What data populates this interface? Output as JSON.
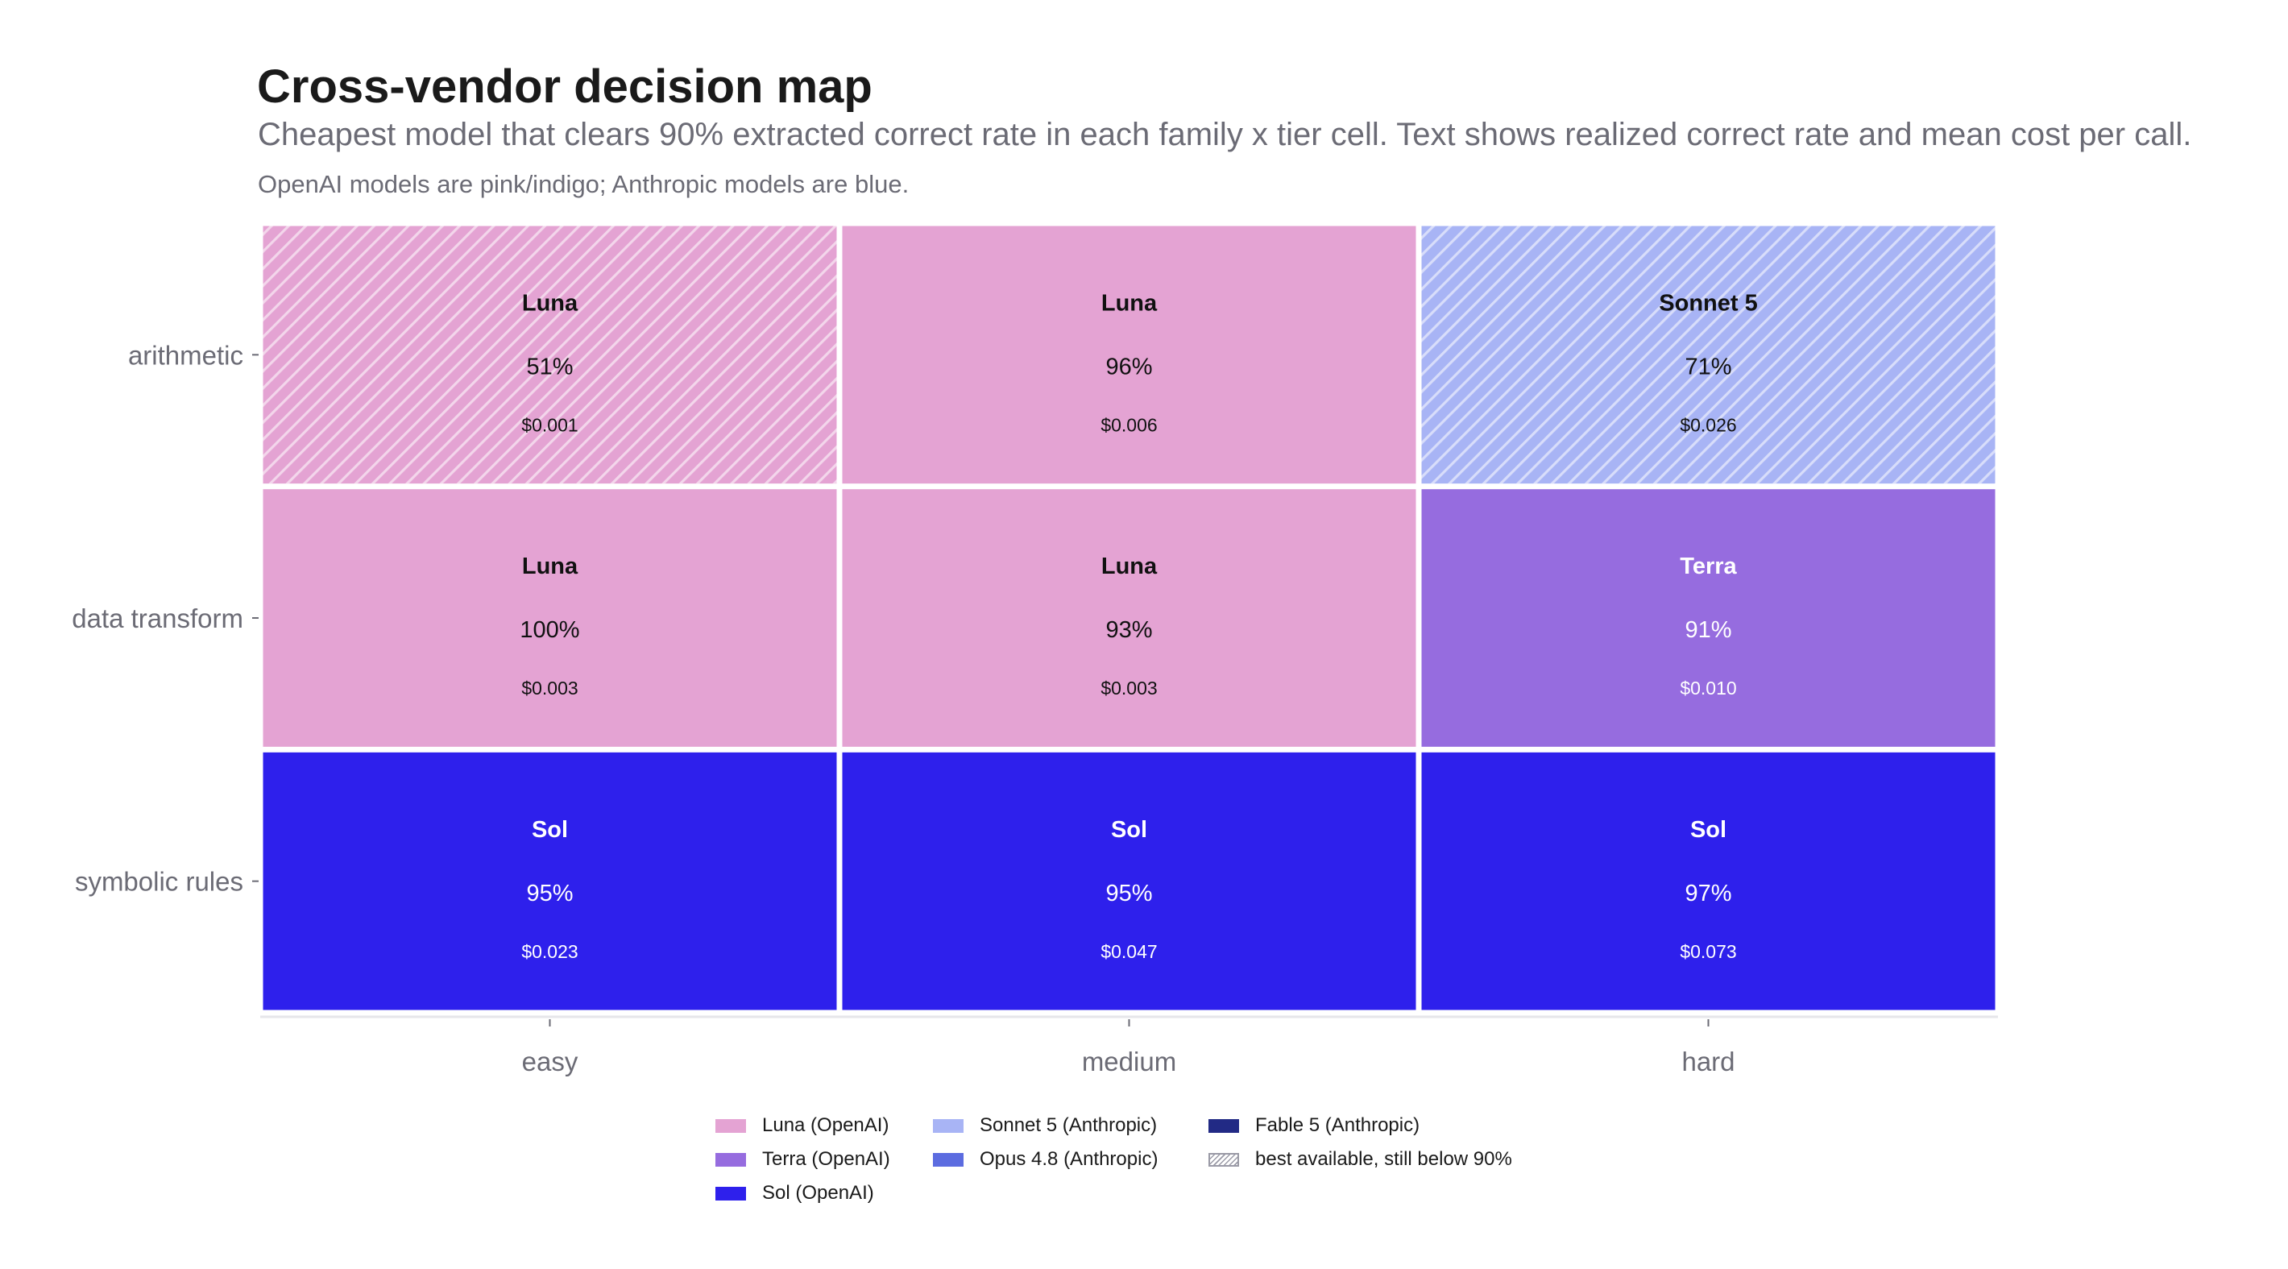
{
  "title": "Cross-vendor decision map",
  "subtitle": "Cheapest model that clears 90% extracted correct rate in each family x tier cell. Text shows realized correct rate and mean cost per call.",
  "note": "OpenAI models are pink/indigo; Anthropic models are blue.",
  "chart_data": {
    "type": "heatmap",
    "title": "Cross-vendor decision map",
    "xlabel": "",
    "ylabel": "",
    "x_categories": [
      "easy",
      "medium",
      "hard"
    ],
    "y_categories": [
      "arithmetic",
      "data transform",
      "symbolic rules"
    ],
    "grid": false,
    "legend_position": "bottom-center",
    "models": [
      {
        "name": "Luna (OpenAI)",
        "short": "Luna",
        "color": "#e4a3d3",
        "text_color": "#111111"
      },
      {
        "name": "Terra (OpenAI)",
        "short": "Terra",
        "color": "#966cdf",
        "text_color": "#ffffff"
      },
      {
        "name": "Sol (OpenAI)",
        "short": "Sol",
        "color": "#2e20ec",
        "text_color": "#ffffff"
      },
      {
        "name": "Sonnet 5 (Anthropic)",
        "short": "Sonnet 5",
        "color": "#a8b4f5",
        "text_color": "#111111"
      },
      {
        "name": "Opus 4.8 (Anthropic)",
        "short": "Opus 4.8",
        "color": "#5c6ce0",
        "text_color": "#ffffff"
      },
      {
        "name": "Fable 5 (Anthropic)",
        "short": "Fable 5",
        "color": "#222a85",
        "text_color": "#ffffff"
      }
    ],
    "hatch_legend_label": "best available, still below 90%",
    "cells": [
      {
        "family": "arithmetic",
        "tier": "easy",
        "model": "Luna",
        "rate": "51%",
        "cost": "$0.001",
        "below_threshold": true
      },
      {
        "family": "arithmetic",
        "tier": "medium",
        "model": "Luna",
        "rate": "96%",
        "cost": "$0.006",
        "below_threshold": false
      },
      {
        "family": "arithmetic",
        "tier": "hard",
        "model": "Sonnet 5",
        "rate": "71%",
        "cost": "$0.026",
        "below_threshold": true
      },
      {
        "family": "data transform",
        "tier": "easy",
        "model": "Luna",
        "rate": "100%",
        "cost": "$0.003",
        "below_threshold": false
      },
      {
        "family": "data transform",
        "tier": "medium",
        "model": "Luna",
        "rate": "93%",
        "cost": "$0.003",
        "below_threshold": false
      },
      {
        "family": "data transform",
        "tier": "hard",
        "model": "Terra",
        "rate": "91%",
        "cost": "$0.010",
        "below_threshold": false
      },
      {
        "family": "symbolic rules",
        "tier": "easy",
        "model": "Sol",
        "rate": "95%",
        "cost": "$0.023",
        "below_threshold": false
      },
      {
        "family": "symbolic rules",
        "tier": "medium",
        "model": "Sol",
        "rate": "95%",
        "cost": "$0.047",
        "below_threshold": false
      },
      {
        "family": "symbolic rules",
        "tier": "hard",
        "model": "Sol",
        "rate": "97%",
        "cost": "$0.073",
        "below_threshold": false
      }
    ]
  }
}
